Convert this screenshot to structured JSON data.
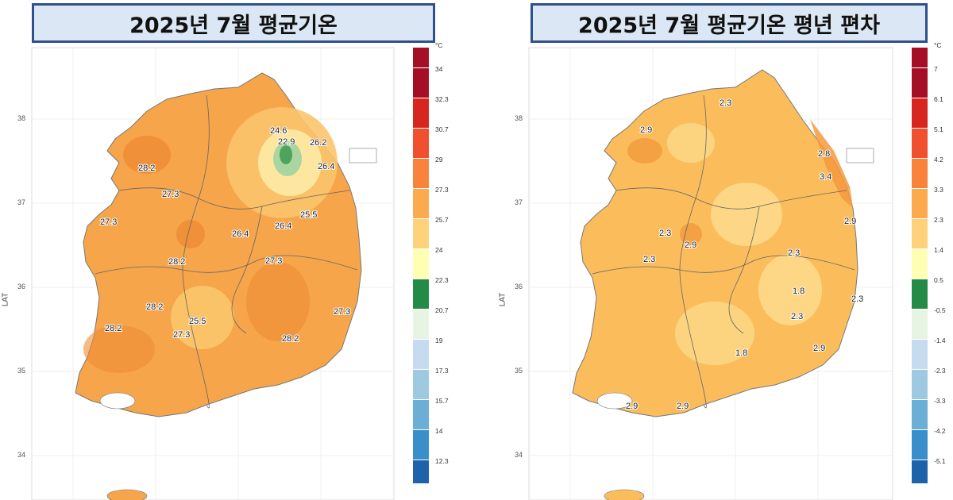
{
  "panels": [
    {
      "title": "2025년 7월 평균기온",
      "axis_label": "LAT",
      "lat_ticks": [
        "38",
        "37",
        "36",
        "35",
        "34"
      ],
      "legend_unit": "°C",
      "legend_values": [
        "34",
        "32.3",
        "30.7",
        "29",
        "27.3",
        "25.7",
        "24",
        "22.3",
        "20.7",
        "19",
        "17.3",
        "15.7",
        "14",
        "12.3"
      ],
      "legend_colors": [
        "#a50f26",
        "#d7261e",
        "#f0502d",
        "#f9833b",
        "#fbaa4e",
        "#fdd27b",
        "#ffffb3",
        "#238b45",
        "#e8f4e3",
        "#c6dbef",
        "#9ecae1",
        "#6baed6",
        "#3a8fcb",
        "#1c63aa",
        "#0b3d8a"
      ],
      "contour_labels": [
        "24.6",
        "22.9",
        "26.2",
        "26.4",
        "28.2",
        "27.3",
        "27.3",
        "25.5",
        "26.4",
        "26.4",
        "28.2",
        "27.3",
        "28.2",
        "28.2",
        "25.5",
        "27.3",
        "27.3",
        "28.2"
      ],
      "fill_color": "#f6a54a"
    },
    {
      "title": "2025년 7월 평균기온 평년 편차",
      "axis_label": "LAT",
      "lat_ticks": [
        "38",
        "37",
        "36",
        "35",
        "34"
      ],
      "legend_unit": "°C",
      "legend_values": [
        "7",
        "6.1",
        "5.1",
        "4.2",
        "3.3",
        "2.3",
        "1.4",
        "0.5",
        "-0.5",
        "-1.4",
        "-2.3",
        "-3.3",
        "-4.2",
        "-5.1"
      ],
      "legend_colors": [
        "#a50f26",
        "#d7261e",
        "#f0502d",
        "#f9833b",
        "#fbaa4e",
        "#fdd27b",
        "#ffffb3",
        "#238b45",
        "#e8f4e3",
        "#c6dbef",
        "#9ecae1",
        "#6baed6",
        "#3a8fcb",
        "#1c63aa",
        "#0b3d8a"
      ],
      "contour_labels": [
        "2.3",
        "2.9",
        "2.8",
        "3.4",
        "2.9",
        "2.3",
        "2.9",
        "2.3",
        "2.3",
        "1.8",
        "2.3",
        "2.3",
        "2.9",
        "1.8",
        "2.9",
        "2.9"
      ],
      "fill_color": "#fbbd5c"
    }
  ]
}
